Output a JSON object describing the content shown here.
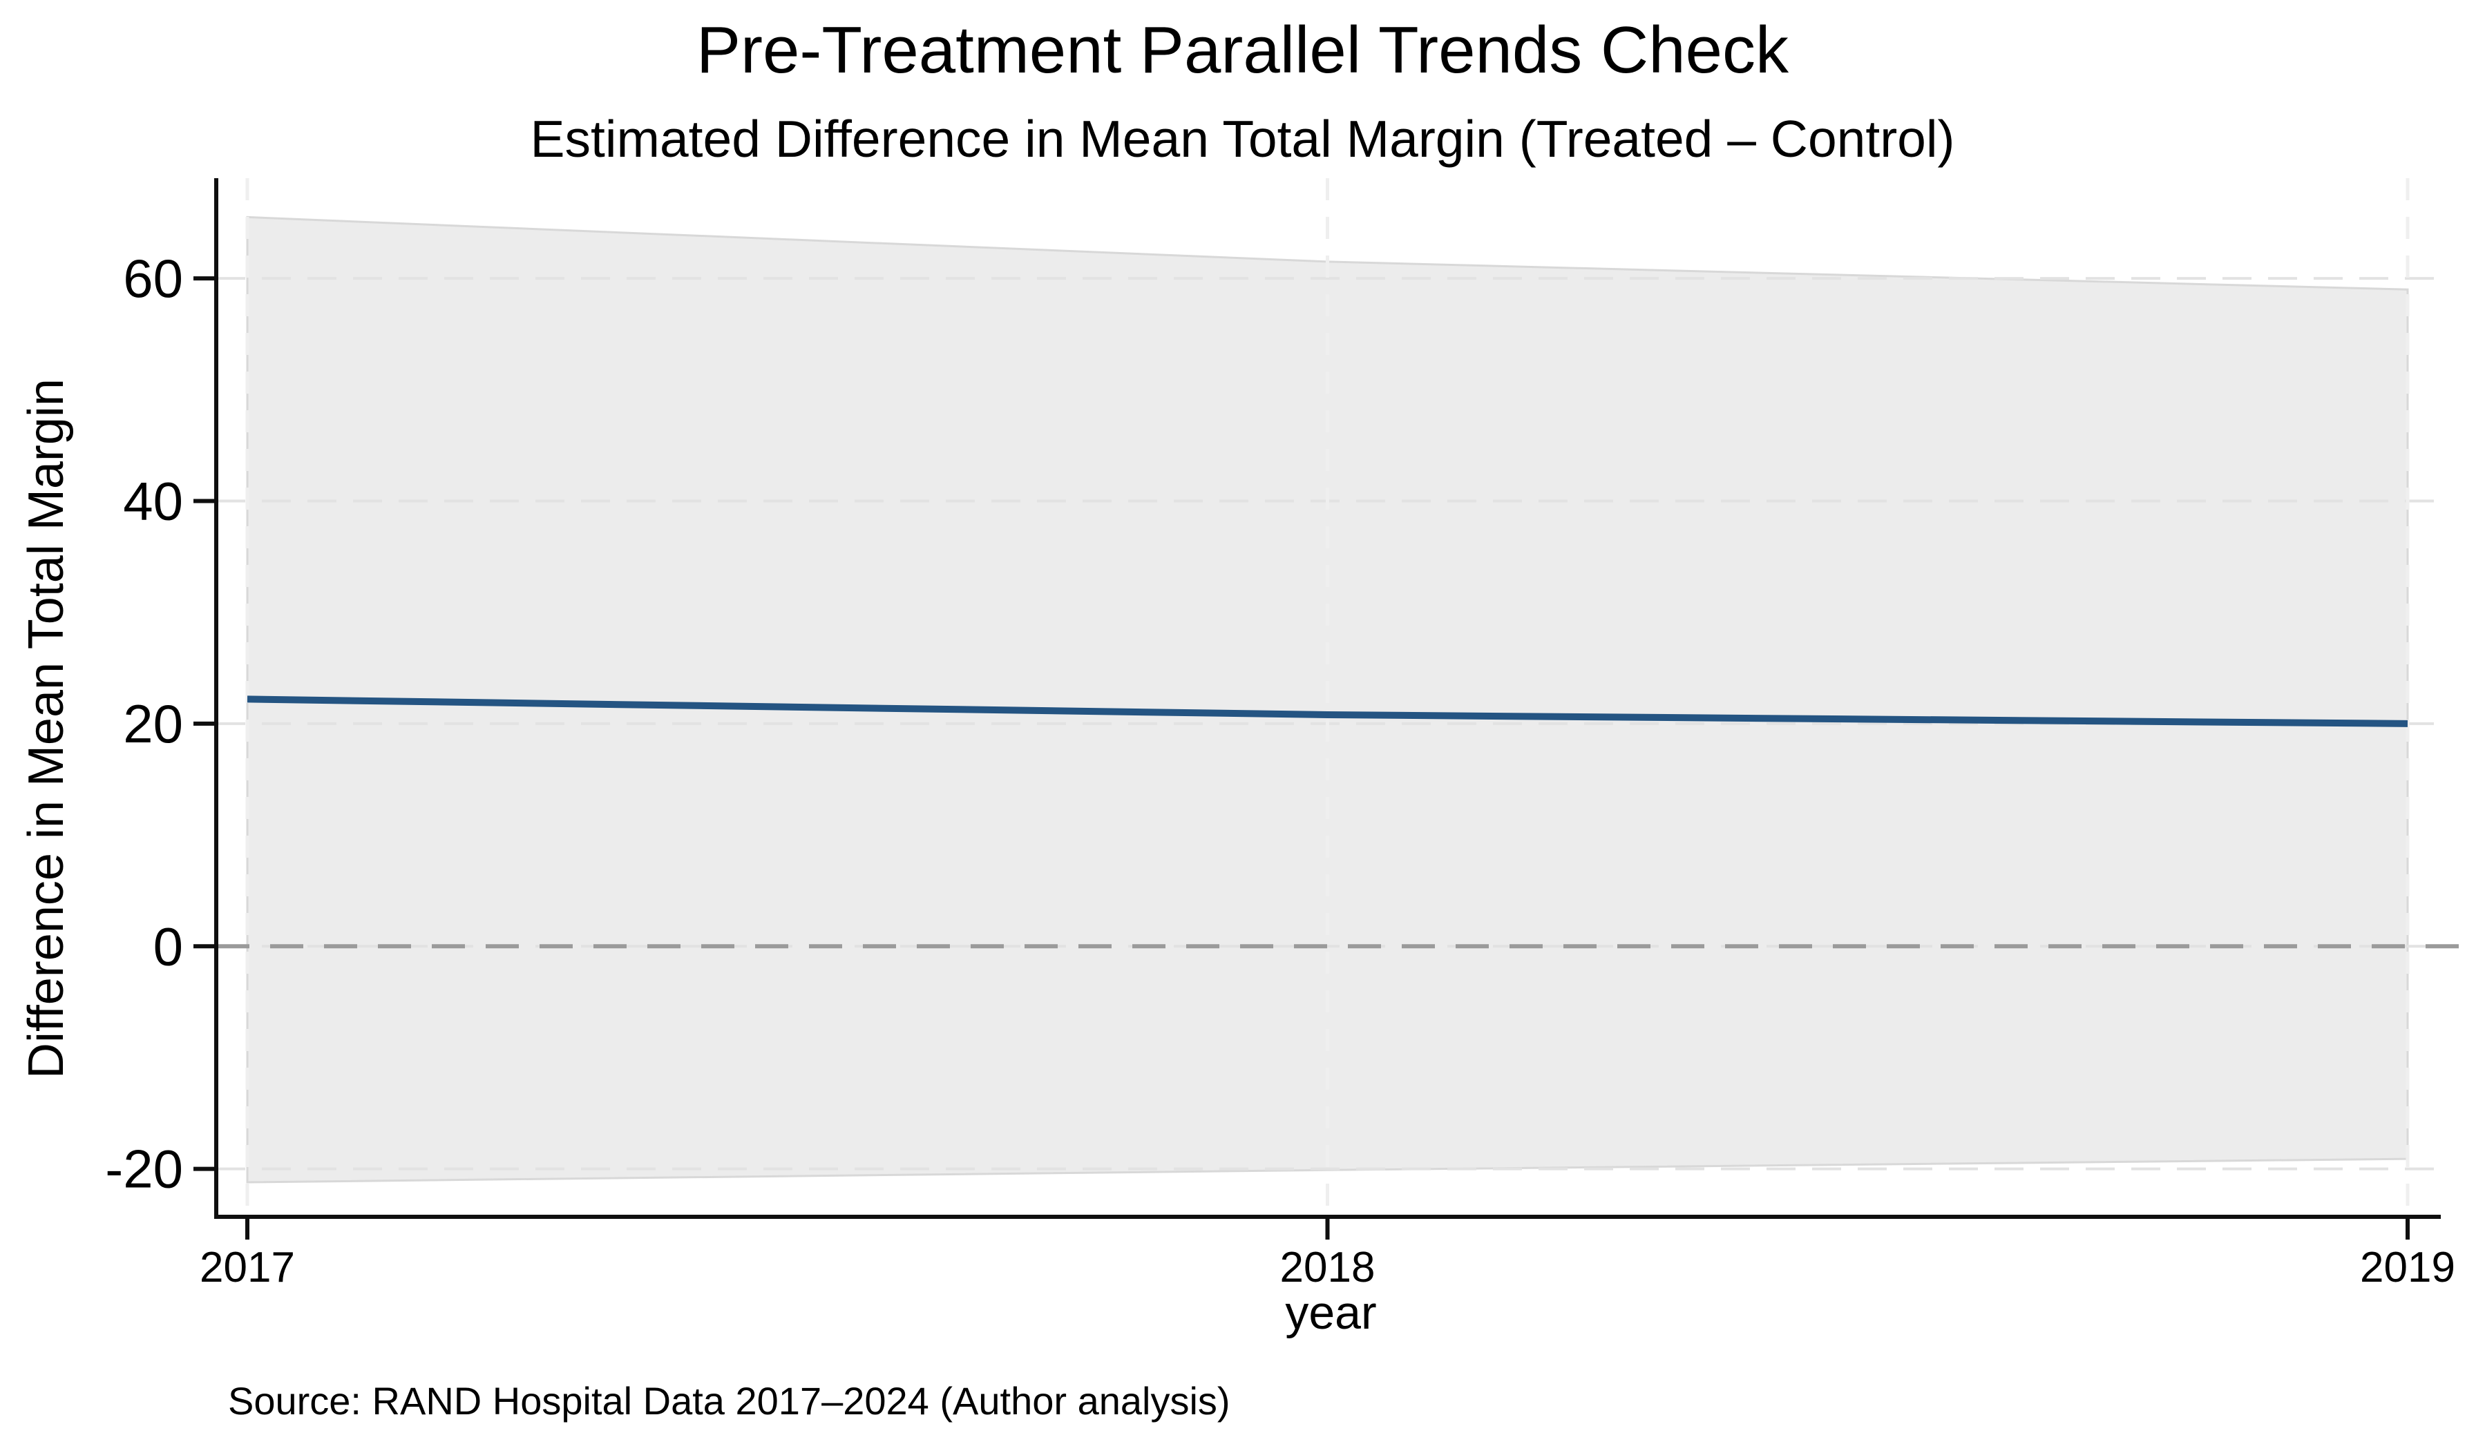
{
  "chart": {
    "title": "Pre-Treatment Parallel Trends Check",
    "subtitle": "Estimated Difference in Mean Total Margin (Treated – Control)",
    "ylabel": "Difference in Mean Total Margin",
    "xlabel": "year",
    "note": "Source: RAND Hospital Data 2017–2024 (Author analysis)"
  },
  "chart_data": {
    "type": "line",
    "title": "Pre-Treatment Parallel Trends Check",
    "subtitle": "Estimated Difference in Mean Total Margin (Treated – Control)",
    "xlabel": "year",
    "ylabel": "Difference in Mean Total Margin",
    "note": "Source: RAND Hospital Data 2017–2024 (Author analysis)",
    "x": [
      2017,
      2018,
      2019
    ],
    "values": [
      22.2,
      20.8,
      20.0
    ],
    "ci_upper": [
      65.5,
      61.5,
      59.0
    ],
    "ci_lower": [
      -21.2,
      -20.1,
      -19.1
    ],
    "x_ticks": [
      {
        "v": 2017,
        "label": "2017"
      },
      {
        "v": 2018,
        "label": "2018"
      },
      {
        "v": 2019,
        "label": "2019"
      }
    ],
    "y_ticks": [
      {
        "v": -20,
        "label": "-20"
      },
      {
        "v": 0,
        "label": "0"
      },
      {
        "v": 20,
        "label": "20"
      },
      {
        "v": 40,
        "label": "40"
      },
      {
        "v": 60,
        "label": "60"
      }
    ],
    "ylim": [
      -24.3,
      69.0
    ],
    "xlim": [
      2016.97,
      2019.03
    ],
    "zero_line": 0,
    "grid": true,
    "legend": "none",
    "colors": {
      "line": "#245482",
      "band_fill": "#ececec",
      "band_stroke": "#d8d8d8",
      "zero_line": "#9a9a9a",
      "grid_h": "#e2e2e2",
      "grid_v": "#efefef",
      "axis": "#0f0f0f",
      "background": "#ffffff"
    }
  }
}
